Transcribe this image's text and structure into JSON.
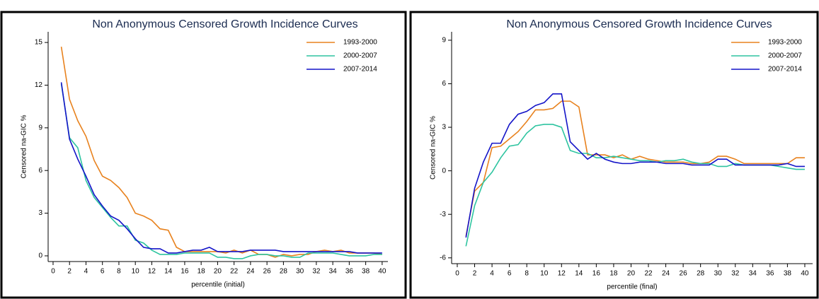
{
  "chart_data": [
    {
      "type": "line",
      "title": "Non Anonymous Censored Growth Incidence Curves",
      "x_label": "percentile (initial)",
      "y_label": "Censored na-GIC %",
      "x": [
        1,
        2,
        3,
        4,
        5,
        6,
        7,
        8,
        9,
        10,
        11,
        12,
        13,
        14,
        15,
        16,
        17,
        18,
        19,
        20,
        21,
        22,
        23,
        24,
        25,
        26,
        27,
        28,
        29,
        30,
        31,
        32,
        33,
        34,
        35,
        36,
        37,
        38,
        39,
        40
      ],
      "xlim": [
        -0.6,
        40.7
      ],
      "xticks": [
        0,
        2,
        4,
        6,
        8,
        10,
        12,
        14,
        16,
        18,
        20,
        22,
        24,
        26,
        28,
        30,
        32,
        34,
        36,
        38,
        40
      ],
      "ylim": [
        -0.4,
        15.75
      ],
      "yticks": [
        0,
        3,
        6,
        9,
        12,
        15
      ],
      "legend": "top-right",
      "series": [
        {
          "name": "1993-2000",
          "color": "#e8821e",
          "values": [
            14.7,
            11.0,
            9.5,
            8.4,
            6.7,
            5.6,
            5.3,
            4.8,
            4.1,
            3.0,
            2.8,
            2.5,
            1.9,
            1.8,
            0.6,
            0.3,
            0.3,
            0.3,
            0.3,
            0.3,
            0.2,
            0.4,
            0.2,
            0.4,
            0.1,
            0.1,
            -0.1,
            0.1,
            0,
            0.1,
            0.1,
            0.3,
            0.4,
            0.3,
            0.4,
            0.2,
            0.2,
            0.2,
            0.2,
            0.1
          ]
        },
        {
          "name": "2000-2007",
          "color": "#2ec4a0",
          "values": [
            12.1,
            8.3,
            7.6,
            5.3,
            4.1,
            3.4,
            2.7,
            2.1,
            2.1,
            1.1,
            0.9,
            0.4,
            0.1,
            0.1,
            0.1,
            0.2,
            0.2,
            0.2,
            0.2,
            -0.1,
            -0.1,
            -0.2,
            -0.2,
            0,
            0.1,
            0.1,
            0,
            0,
            -0.1,
            -0.1,
            0.2,
            0.2,
            0.2,
            0.2,
            0.1,
            0,
            0,
            0,
            0.1,
            0.1
          ]
        },
        {
          "name": "2007-2014",
          "color": "#1414c8",
          "values": [
            12.2,
            8.2,
            6.8,
            5.6,
            4.3,
            3.5,
            2.8,
            2.5,
            1.9,
            1.2,
            0.6,
            0.5,
            0.5,
            0.2,
            0.2,
            0.3,
            0.4,
            0.4,
            0.6,
            0.3,
            0.3,
            0.3,
            0.3,
            0.4,
            0.4,
            0.4,
            0.4,
            0.3,
            0.3,
            0.3,
            0.3,
            0.3,
            0.3,
            0.3,
            0.3,
            0.3,
            0.2,
            0.2,
            0.2,
            0.2
          ]
        }
      ]
    },
    {
      "type": "line",
      "title": "Non Anonymous Censored Growth Incidence Curves",
      "x_label": "percentile (final)",
      "y_label": "Censored na-GIC %",
      "x": [
        1,
        2,
        3,
        4,
        5,
        6,
        7,
        8,
        9,
        10,
        11,
        12,
        13,
        14,
        15,
        16,
        17,
        18,
        19,
        20,
        21,
        22,
        23,
        24,
        25,
        26,
        27,
        28,
        29,
        30,
        31,
        32,
        33,
        34,
        35,
        36,
        37,
        38,
        39,
        40
      ],
      "xlim": [
        -0.65,
        40.9
      ],
      "xticks": [
        0,
        2,
        4,
        6,
        8,
        10,
        12,
        14,
        16,
        18,
        20,
        22,
        24,
        26,
        28,
        30,
        32,
        34,
        36,
        38,
        40
      ],
      "ylim": [
        -6.4,
        9.58
      ],
      "yticks": [
        -6,
        -3,
        0,
        3,
        6,
        9
      ],
      "legend": "top-right",
      "series": [
        {
          "name": "1993-2000",
          "color": "#e8821e",
          "values": [
            -4.5,
            -1.4,
            -0.8,
            1.6,
            1.7,
            2.2,
            2.7,
            3.4,
            4.2,
            4.2,
            4.3,
            4.8,
            4.8,
            4.4,
            1.1,
            1.1,
            1.1,
            0.9,
            1.1,
            0.8,
            1.0,
            0.8,
            0.7,
            0.6,
            0.6,
            0.6,
            0.5,
            0.5,
            0.6,
            1.0,
            1.0,
            0.8,
            0.5,
            0.5,
            0.5,
            0.5,
            0.5,
            0.5,
            0.9,
            0.9
          ]
        },
        {
          "name": "2000-2007",
          "color": "#2ec4a0",
          "values": [
            -5.2,
            -2.4,
            -0.8,
            -0.1,
            0.9,
            1.7,
            1.8,
            2.6,
            3.1,
            3.2,
            3.2,
            3.0,
            1.4,
            1.2,
            1.2,
            0.9,
            0.9,
            1.0,
            0.9,
            0.8,
            0.7,
            0.7,
            0.6,
            0.7,
            0.7,
            0.8,
            0.6,
            0.5,
            0.5,
            0.3,
            0.3,
            0.5,
            0.4,
            0.4,
            0.4,
            0.4,
            0.3,
            0.2,
            0.1,
            0.1
          ]
        },
        {
          "name": "2007-2014",
          "color": "#1414c8",
          "values": [
            -4.6,
            -1.2,
            0.6,
            1.9,
            1.9,
            3.2,
            3.9,
            4.1,
            4.5,
            4.7,
            5.3,
            5.3,
            2.0,
            1.4,
            0.8,
            1.2,
            0.8,
            0.6,
            0.5,
            0.5,
            0.6,
            0.6,
            0.6,
            0.5,
            0.5,
            0.5,
            0.4,
            0.4,
            0.4,
            0.8,
            0.8,
            0.4,
            0.4,
            0.4,
            0.4,
            0.4,
            0.4,
            0.5,
            0.3,
            0.3
          ]
        }
      ]
    }
  ]
}
